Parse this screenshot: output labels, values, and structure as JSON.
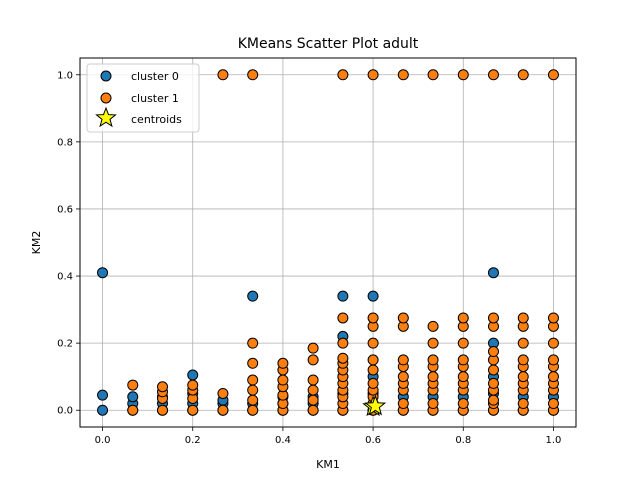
{
  "chart_data": {
    "type": "scatter",
    "title": "KMeans Scatter Plot adult",
    "xlabel": "KM1",
    "ylabel": "KM2",
    "xlim": [
      -0.05,
      1.05
    ],
    "ylim": [
      -0.05,
      1.05
    ],
    "xticks": [
      0.0,
      0.2,
      0.4,
      0.6,
      0.8,
      1.0
    ],
    "xtick_labels": [
      "0.0",
      "0.2",
      "0.4",
      "0.6",
      "0.8",
      "1.0"
    ],
    "yticks": [
      0.0,
      0.2,
      0.4,
      0.6,
      0.8,
      1.0
    ],
    "ytick_labels": [
      "0.0",
      "0.2",
      "0.4",
      "0.6",
      "0.8",
      "1.0"
    ],
    "grid": true,
    "legend_position": "top-left",
    "series": [
      {
        "name": "cluster 0",
        "color": "#1f77b4",
        "marker": "circle",
        "points": [
          [
            0.0,
            0.0
          ],
          [
            0.0,
            0.045
          ],
          [
            0.0,
            0.41
          ],
          [
            0.067,
            0.0
          ],
          [
            0.067,
            0.02
          ],
          [
            0.067,
            0.04
          ],
          [
            0.133,
            0.0
          ],
          [
            0.133,
            0.02
          ],
          [
            0.133,
            0.04
          ],
          [
            0.2,
            0.0
          ],
          [
            0.2,
            0.02
          ],
          [
            0.2,
            0.05
          ],
          [
            0.2,
            0.105
          ],
          [
            0.267,
            0.0
          ],
          [
            0.267,
            0.02
          ],
          [
            0.267,
            0.03
          ],
          [
            0.333,
            0.0
          ],
          [
            0.333,
            0.02
          ],
          [
            0.333,
            0.34
          ],
          [
            0.4,
            0.0
          ],
          [
            0.4,
            0.02
          ],
          [
            0.4,
            0.04
          ],
          [
            0.467,
            0.0
          ],
          [
            0.467,
            0.02
          ],
          [
            0.467,
            0.04
          ],
          [
            0.533,
            0.0
          ],
          [
            0.533,
            0.05
          ],
          [
            0.533,
            0.1
          ],
          [
            0.533,
            0.22
          ],
          [
            0.533,
            0.34
          ],
          [
            0.6,
            0.0
          ],
          [
            0.6,
            0.05
          ],
          [
            0.6,
            0.1
          ],
          [
            0.6,
            0.34
          ],
          [
            0.667,
            0.0
          ],
          [
            0.667,
            0.04
          ],
          [
            0.733,
            0.0
          ],
          [
            0.733,
            0.04
          ],
          [
            0.8,
            0.0
          ],
          [
            0.8,
            0.04
          ],
          [
            0.867,
            0.0
          ],
          [
            0.867,
            0.05
          ],
          [
            0.867,
            0.1
          ],
          [
            0.867,
            0.2
          ],
          [
            0.867,
            0.41
          ],
          [
            0.933,
            0.0
          ],
          [
            0.933,
            0.04
          ],
          [
            1.0,
            0.0
          ],
          [
            1.0,
            0.04
          ]
        ]
      },
      {
        "name": "cluster 1",
        "color": "#ff7f0e",
        "marker": "circle",
        "points": [
          [
            0.067,
            0.0
          ],
          [
            0.067,
            0.075
          ],
          [
            0.133,
            0.0
          ],
          [
            0.133,
            0.035
          ],
          [
            0.133,
            0.055
          ],
          [
            0.133,
            0.07
          ],
          [
            0.2,
            0.0
          ],
          [
            0.2,
            0.035
          ],
          [
            0.2,
            0.06
          ],
          [
            0.2,
            0.075
          ],
          [
            0.267,
            0.0
          ],
          [
            0.267,
            0.05
          ],
          [
            0.267,
            1.0
          ],
          [
            0.333,
            0.0
          ],
          [
            0.333,
            0.03
          ],
          [
            0.333,
            0.06
          ],
          [
            0.333,
            0.09
          ],
          [
            0.333,
            0.14
          ],
          [
            0.333,
            0.2
          ],
          [
            0.333,
            1.0
          ],
          [
            0.4,
            0.0
          ],
          [
            0.4,
            0.02
          ],
          [
            0.4,
            0.045
          ],
          [
            0.4,
            0.07
          ],
          [
            0.4,
            0.09
          ],
          [
            0.4,
            0.12
          ],
          [
            0.4,
            0.14
          ],
          [
            0.467,
            0.0
          ],
          [
            0.467,
            0.03
          ],
          [
            0.467,
            0.06
          ],
          [
            0.467,
            0.09
          ],
          [
            0.467,
            0.15
          ],
          [
            0.467,
            0.185
          ],
          [
            0.533,
            0.0
          ],
          [
            0.533,
            0.02
          ],
          [
            0.533,
            0.04
          ],
          [
            0.533,
            0.06
          ],
          [
            0.533,
            0.08
          ],
          [
            0.533,
            0.1
          ],
          [
            0.533,
            0.12
          ],
          [
            0.533,
            0.14
          ],
          [
            0.533,
            0.155
          ],
          [
            0.533,
            0.2
          ],
          [
            0.533,
            0.275
          ],
          [
            0.533,
            1.0
          ],
          [
            0.6,
            0.0
          ],
          [
            0.6,
            0.02
          ],
          [
            0.6,
            0.04
          ],
          [
            0.6,
            0.06
          ],
          [
            0.6,
            0.08
          ],
          [
            0.6,
            0.12
          ],
          [
            0.6,
            0.15
          ],
          [
            0.6,
            0.2
          ],
          [
            0.6,
            0.25
          ],
          [
            0.6,
            0.275
          ],
          [
            0.6,
            1.0
          ],
          [
            0.667,
            0.0
          ],
          [
            0.667,
            0.02
          ],
          [
            0.667,
            0.06
          ],
          [
            0.667,
            0.08
          ],
          [
            0.667,
            0.1
          ],
          [
            0.667,
            0.13
          ],
          [
            0.667,
            0.15
          ],
          [
            0.667,
            0.25
          ],
          [
            0.667,
            0.275
          ],
          [
            0.667,
            1.0
          ],
          [
            0.733,
            0.0
          ],
          [
            0.733,
            0.02
          ],
          [
            0.733,
            0.06
          ],
          [
            0.733,
            0.08
          ],
          [
            0.733,
            0.1
          ],
          [
            0.733,
            0.13
          ],
          [
            0.733,
            0.15
          ],
          [
            0.733,
            0.2
          ],
          [
            0.733,
            0.25
          ],
          [
            0.733,
            1.0
          ],
          [
            0.8,
            0.0
          ],
          [
            0.8,
            0.02
          ],
          [
            0.8,
            0.06
          ],
          [
            0.8,
            0.08
          ],
          [
            0.8,
            0.1
          ],
          [
            0.8,
            0.13
          ],
          [
            0.8,
            0.15
          ],
          [
            0.8,
            0.2
          ],
          [
            0.8,
            0.25
          ],
          [
            0.8,
            0.275
          ],
          [
            0.8,
            1.0
          ],
          [
            0.867,
            0.0
          ],
          [
            0.867,
            0.02
          ],
          [
            0.867,
            0.03
          ],
          [
            0.867,
            0.06
          ],
          [
            0.867,
            0.08
          ],
          [
            0.867,
            0.12
          ],
          [
            0.867,
            0.15
          ],
          [
            0.867,
            0.175
          ],
          [
            0.867,
            0.25
          ],
          [
            0.867,
            0.275
          ],
          [
            0.867,
            1.0
          ],
          [
            0.933,
            0.0
          ],
          [
            0.933,
            0.02
          ],
          [
            0.933,
            0.06
          ],
          [
            0.933,
            0.08
          ],
          [
            0.933,
            0.1
          ],
          [
            0.933,
            0.13
          ],
          [
            0.933,
            0.15
          ],
          [
            0.933,
            0.2
          ],
          [
            0.933,
            0.25
          ],
          [
            0.933,
            0.275
          ],
          [
            0.933,
            1.0
          ],
          [
            1.0,
            0.0
          ],
          [
            1.0,
            0.02
          ],
          [
            1.0,
            0.06
          ],
          [
            1.0,
            0.08
          ],
          [
            1.0,
            0.1
          ],
          [
            1.0,
            0.13
          ],
          [
            1.0,
            0.15
          ],
          [
            1.0,
            0.2
          ],
          [
            1.0,
            0.25
          ],
          [
            1.0,
            0.275
          ],
          [
            1.0,
            1.0
          ]
        ]
      },
      {
        "name": "centroids",
        "color": "#ffff00",
        "marker": "star",
        "points": [
          [
            0.6,
            0.01
          ],
          [
            0.605,
            0.012
          ]
        ]
      }
    ]
  }
}
